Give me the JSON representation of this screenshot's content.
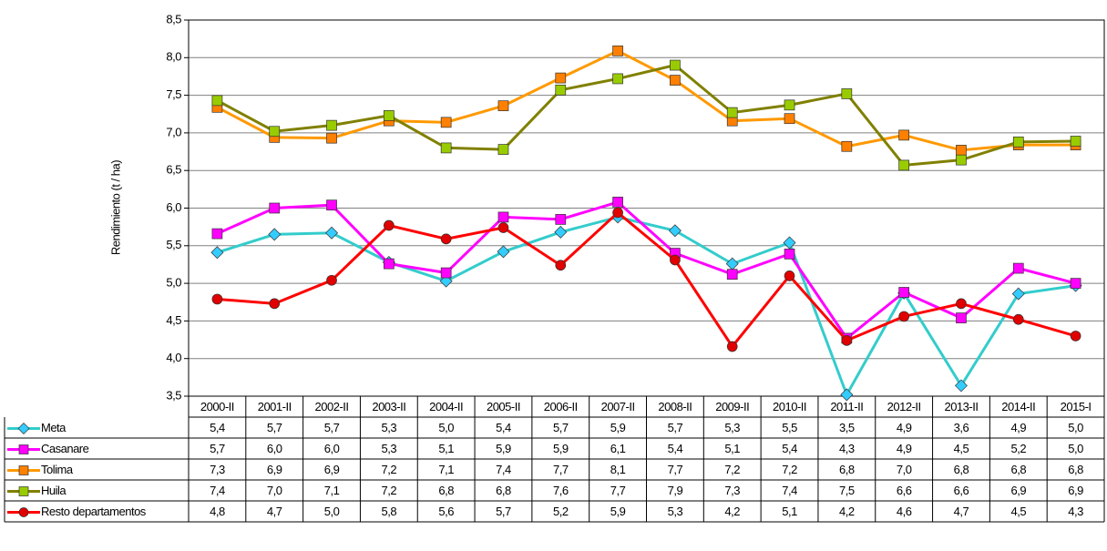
{
  "chart_data": {
    "type": "line",
    "y_label": "Rendimiento (t / ha)",
    "categories": [
      "2000-II",
      "2001-II",
      "2002-II",
      "2003-II",
      "2004-II",
      "2005-II",
      "2006-II",
      "2007-II",
      "2008-II",
      "2009-II",
      "2010-II",
      "2011-II",
      "2012-II",
      "2013-II",
      "2014-II",
      "2015-I"
    ],
    "ylim": [
      3.5,
      8.5
    ],
    "yticks": [
      {
        "value": 3.5,
        "label": "3,5"
      },
      {
        "value": 4.0,
        "label": "4,0"
      },
      {
        "value": 4.5,
        "label": "4,5"
      },
      {
        "value": 5.0,
        "label": "5,0"
      },
      {
        "value": 5.5,
        "label": "5,5"
      },
      {
        "value": 6.0,
        "label": "6,0"
      },
      {
        "value": 6.5,
        "label": "6,5"
      },
      {
        "value": 7.0,
        "label": "7,0"
      },
      {
        "value": 7.5,
        "label": "7,5"
      },
      {
        "value": 8.0,
        "label": "8,0"
      },
      {
        "value": 8.5,
        "label": "8,5"
      }
    ],
    "grid": true,
    "series": [
      {
        "name": "Meta",
        "color": "#33cccc",
        "marker": "diamond",
        "marker_color": "#33ccff",
        "values": [
          5.41,
          5.65,
          5.67,
          5.28,
          5.03,
          5.42,
          5.68,
          5.88,
          5.7,
          5.26,
          5.54,
          3.52,
          4.87,
          3.64,
          4.86,
          4.97
        ],
        "value_labels": [
          "5,4",
          "5,7",
          "5,7",
          "5,3",
          "5,0",
          "5,4",
          "5,7",
          "5,9",
          "5,7",
          "5,3",
          "5,5",
          "3,5",
          "4,9",
          "3,6",
          "4,9",
          "5,0"
        ]
      },
      {
        "name": "Casanare",
        "color": "#ff00ff",
        "marker": "square",
        "marker_color": "#ff00ff",
        "values": [
          5.66,
          6.0,
          6.04,
          5.26,
          5.14,
          5.88,
          5.85,
          6.08,
          5.4,
          5.12,
          5.39,
          4.27,
          4.88,
          4.54,
          5.2,
          5.0
        ],
        "value_labels": [
          "5,7",
          "6,0",
          "6,0",
          "5,3",
          "5,1",
          "5,9",
          "5,9",
          "6,1",
          "5,4",
          "5,1",
          "5,4",
          "4,3",
          "4,9",
          "4,5",
          "5,2",
          "5,0"
        ]
      },
      {
        "name": "Tolima",
        "color": "#ff9900",
        "marker": "square",
        "marker_color": "#ff8000",
        "values": [
          7.34,
          6.94,
          6.93,
          7.16,
          7.14,
          7.36,
          7.73,
          8.09,
          7.7,
          7.16,
          7.19,
          6.82,
          6.97,
          6.77,
          6.84,
          6.84
        ],
        "value_labels": [
          "7,3",
          "6,9",
          "6,9",
          "7,2",
          "7,1",
          "7,4",
          "7,7",
          "8,1",
          "7,7",
          "7,2",
          "7,2",
          "6,8",
          "7,0",
          "6,8",
          "6,8",
          "6,8"
        ]
      },
      {
        "name": "Huila",
        "color": "#808000",
        "marker": "square",
        "marker_color": "#99cc00",
        "values": [
          7.43,
          7.02,
          7.1,
          7.23,
          6.8,
          6.78,
          7.57,
          7.72,
          7.9,
          7.27,
          7.37,
          7.52,
          6.57,
          6.64,
          6.88,
          6.89
        ],
        "value_labels": [
          "7,4",
          "7,0",
          "7,1",
          "7,2",
          "6,8",
          "6,8",
          "7,6",
          "7,7",
          "7,9",
          "7,3",
          "7,4",
          "7,5",
          "6,6",
          "6,6",
          "6,9",
          "6,9"
        ]
      },
      {
        "name": "Resto departamentos",
        "color": "#ff0000",
        "marker": "circle",
        "marker_color": "#e00000",
        "values": [
          4.79,
          4.73,
          5.04,
          5.77,
          5.59,
          5.74,
          5.24,
          5.94,
          5.31,
          4.16,
          5.1,
          4.24,
          4.56,
          4.73,
          4.52,
          4.3
        ],
        "value_labels": [
          "4,8",
          "4,7",
          "5,0",
          "5,8",
          "5,6",
          "5,7",
          "5,2",
          "5,9",
          "5,3",
          "4,2",
          "5,1",
          "4,2",
          "4,6",
          "4,7",
          "4,5",
          "4,3"
        ]
      }
    ]
  }
}
